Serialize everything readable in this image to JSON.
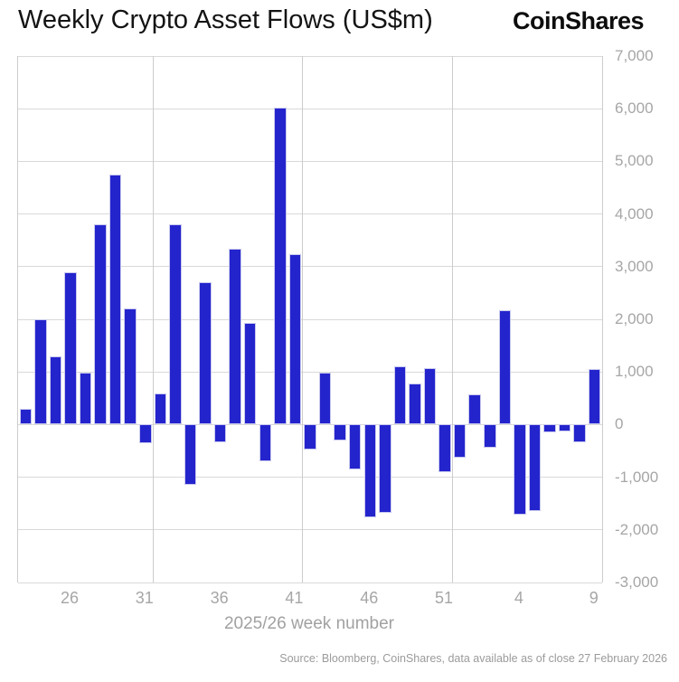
{
  "header": {
    "title": "Weekly Crypto Asset Flows (US$m)",
    "logo": "CoinShares"
  },
  "chart_data": {
    "type": "bar",
    "title": "Weekly Crypto Asset Flows (US$m)",
    "xlabel": "2025/26 week number",
    "ylabel": "",
    "ylim": [
      -3000,
      7000
    ],
    "ytick_step": 1000,
    "y_tick_labels": [
      "7,000",
      "6,000",
      "5,000",
      "4,000",
      "3,000",
      "2,000",
      "1,000",
      "0",
      "-1,000",
      "-2,000",
      "-3,000"
    ],
    "grid": true,
    "legend_position": "none",
    "bar_color": "#2424cd",
    "grid_color": "#d9d9d9",
    "categories": [
      "23",
      "24",
      "25",
      "26",
      "27",
      "28",
      "29",
      "30",
      "31",
      "32",
      "33",
      "34",
      "35",
      "36",
      "37",
      "38",
      "39",
      "40",
      "41",
      "42",
      "43",
      "44",
      "45",
      "46",
      "47",
      "48",
      "49",
      "50",
      "51",
      "52",
      "1",
      "2",
      "3",
      "4",
      "5",
      "6",
      "7",
      "8",
      "9"
    ],
    "values": [
      300,
      2000,
      1300,
      2900,
      990,
      3800,
      4750,
      2200,
      -350,
      590,
      3800,
      -1150,
      2700,
      -330,
      3340,
      1930,
      -690,
      6020,
      3230,
      -470,
      990,
      -300,
      -860,
      -1760,
      -1680,
      1100,
      780,
      1080,
      -900,
      -630,
      570,
      -440,
      2180,
      -1720,
      -1650,
      -150,
      -130,
      -340,
      1060
    ],
    "x_tick_labels": [
      "26",
      "31",
      "36",
      "41",
      "46",
      "51",
      "4",
      "9"
    ],
    "x_tick_indices": [
      3,
      8,
      13,
      18,
      23,
      28,
      33,
      38
    ]
  },
  "footer": {
    "source": "Source: Bloomberg, CoinShares, data available as of close 27 February 2026"
  }
}
